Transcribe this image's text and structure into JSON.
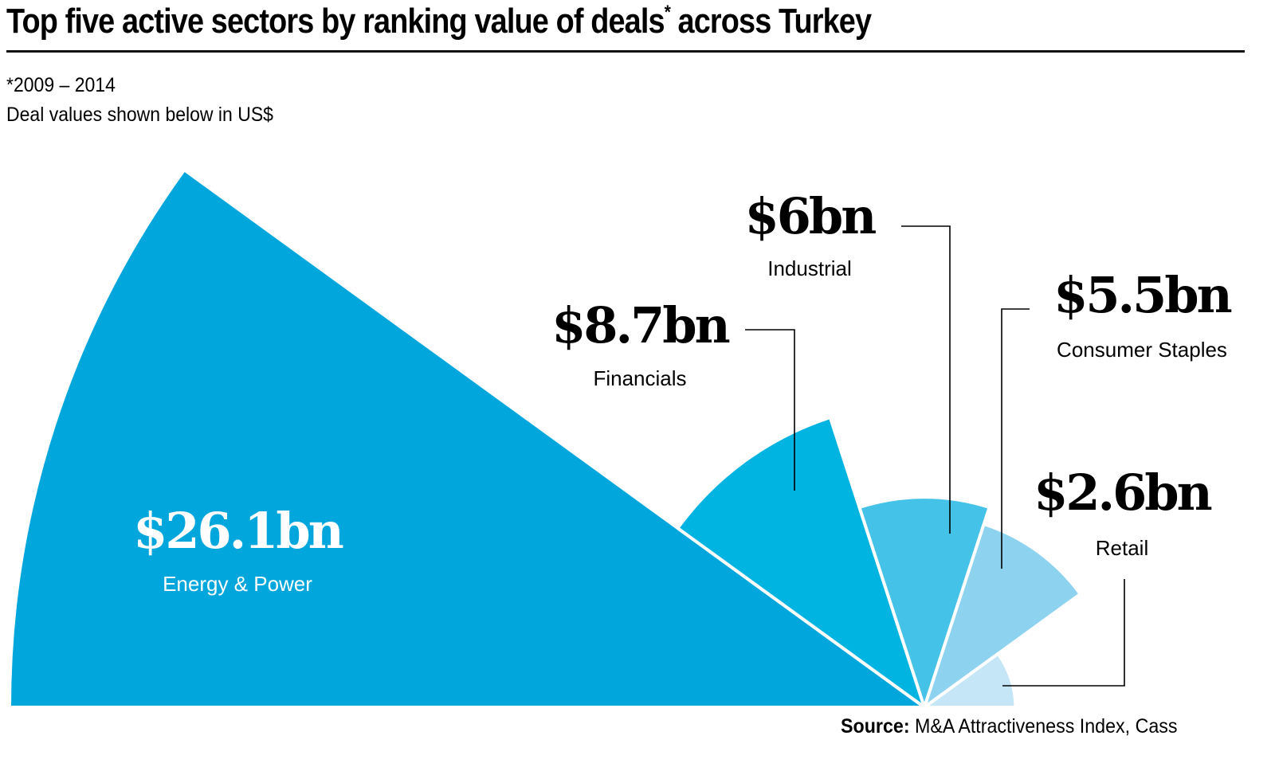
{
  "header": {
    "title": "Top five active sectors by ranking value of deals",
    "title_marker": "*",
    "title_suffix": " across Turkey",
    "note_period": "*2009 – 2014",
    "note_units": "Deal values shown below in US$"
  },
  "footer": {
    "source_label": "Source:",
    "source_text": " M&A Attractiveness Index, Cass"
  },
  "chart_data": {
    "type": "pie",
    "variant": "polar-area half-rose (wedge radius proportional to value, equal 36° angles)",
    "title": "Top five active sectors by ranking value of deals* across Turkey",
    "subtitle": "*2009 – 2014; Deal values shown below in US$",
    "unit": "US$ bn",
    "categories": [
      "Energy & Power",
      "Financials",
      "Industrial",
      "Consumer Staples",
      "Retail"
    ],
    "values": [
      26.1,
      8.7,
      6.0,
      5.5,
      2.6
    ],
    "value_labels": [
      "$26.1bn",
      "$8.7bn",
      "$6bn",
      "$5.5bn",
      "$2.6bn"
    ],
    "colors": [
      "#00a6dc",
      "#00b4e2",
      "#45c2e8",
      "#8dd3ef",
      "#c5e6f6"
    ],
    "label_colors": [
      "#ffffff",
      "#000000",
      "#000000",
      "#000000",
      "#000000"
    ],
    "legend": "none",
    "grid": false,
    "source": "Source: M&A Attractiveness Index, Cass"
  }
}
